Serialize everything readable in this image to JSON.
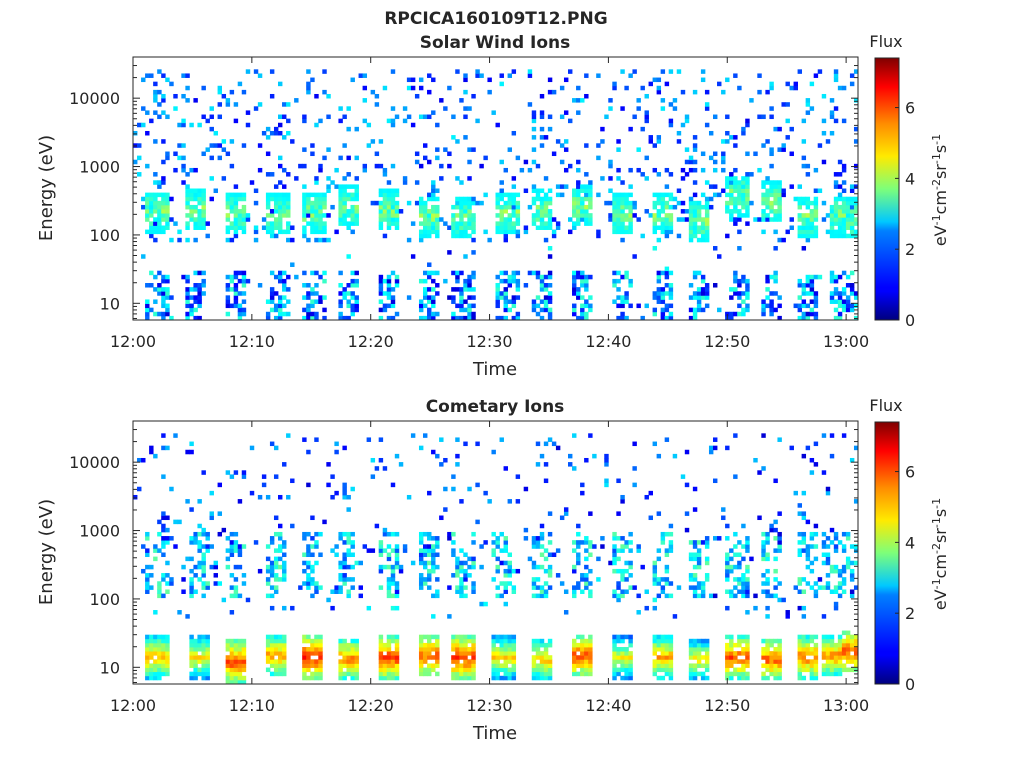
{
  "figure": {
    "title": "RPCICA160109T12.PNG"
  },
  "colors": {
    "colormap": "jet",
    "axis": "#262626",
    "background": "#ffffff"
  },
  "chart_data": [
    {
      "type": "heatmap",
      "title": "Solar Wind Ions",
      "xlabel": "Time",
      "ylabel": "Energy (eV)",
      "xlim": [
        "12:00",
        "13:01"
      ],
      "ylim": [
        5.7,
        40000
      ],
      "yscale": "log",
      "x_ticks": [
        "12:00",
        "12:10",
        "12:20",
        "12:30",
        "12:40",
        "12:50",
        "13:00"
      ],
      "y_ticks": [
        "10",
        "100",
        "1000",
        "10000"
      ],
      "colorbar": {
        "title": "Flux",
        "label": "eV-1cm-2sr-1s-1",
        "ticks": [
          "0",
          "2",
          "4",
          "6"
        ],
        "range": [
          0,
          7.4
        ]
      },
      "bursts_minutes": [
        2.0,
        5.3,
        8.7,
        12.2,
        15.2,
        18.2,
        21.5,
        24.8,
        27.8,
        31.5,
        34.5,
        37.8,
        41.2,
        44.5,
        47.5,
        50.8,
        53.8,
        56.8,
        59.5,
        60.3
      ],
      "bursts_center_eV": [
        220,
        240,
        210,
        200,
        210,
        260,
        230,
        190,
        180,
        210,
        230,
        260,
        200,
        210,
        160,
        380,
        300,
        180,
        190,
        170
      ],
      "bursts_low_eV": [
        12,
        12,
        13,
        12,
        14,
        12,
        12,
        13,
        12,
        14,
        12,
        12,
        12,
        13,
        12,
        13,
        12,
        12,
        13,
        12
      ],
      "flux_typical": {
        "background_high_energy": 1.8,
        "burst_core": 3.5,
        "low_energy_spikes": 1.2
      }
    },
    {
      "type": "heatmap",
      "title": "Cometary Ions",
      "xlabel": "Time",
      "ylabel": "Energy (eV)",
      "xlim": [
        "12:00",
        "13:01"
      ],
      "ylim": [
        5.7,
        40000
      ],
      "yscale": "log",
      "x_ticks": [
        "12:00",
        "12:10",
        "12:20",
        "12:30",
        "12:40",
        "12:50",
        "13:00"
      ],
      "y_ticks": [
        "10",
        "100",
        "1000",
        "10000"
      ],
      "colorbar": {
        "title": "Flux",
        "label": "eV-1cm-2sr-1s-1",
        "ticks": [
          "0",
          "2",
          "4",
          "6"
        ],
        "range": [
          0,
          7.4
        ]
      },
      "bursts_minutes": [
        2.0,
        5.5,
        8.7,
        12.0,
        15.0,
        18.2,
        21.5,
        24.8,
        27.8,
        31.2,
        34.5,
        37.8,
        41.2,
        44.5,
        47.5,
        50.8,
        53.8,
        56.8,
        59.0,
        60.2
      ],
      "bursts_peak_flux": [
        5.2,
        4.8,
        6.0,
        5.4,
        6.3,
        5.6,
        6.1,
        5.9,
        6.2,
        4.9,
        5.0,
        6.0,
        4.6,
        5.3,
        4.7,
        5.9,
        5.8,
        5.7,
        5.5,
        6.0
      ],
      "bursts_peak_energy_eV": [
        14,
        14,
        12,
        15,
        14,
        13,
        14,
        15,
        14,
        14,
        13,
        15,
        14,
        14,
        13,
        14,
        13,
        14,
        15,
        17
      ],
      "flux_typical": {
        "background_high_energy": 1.6,
        "mid_plumes": 2.8,
        "low_energy_bursts": 5.5
      }
    }
  ]
}
